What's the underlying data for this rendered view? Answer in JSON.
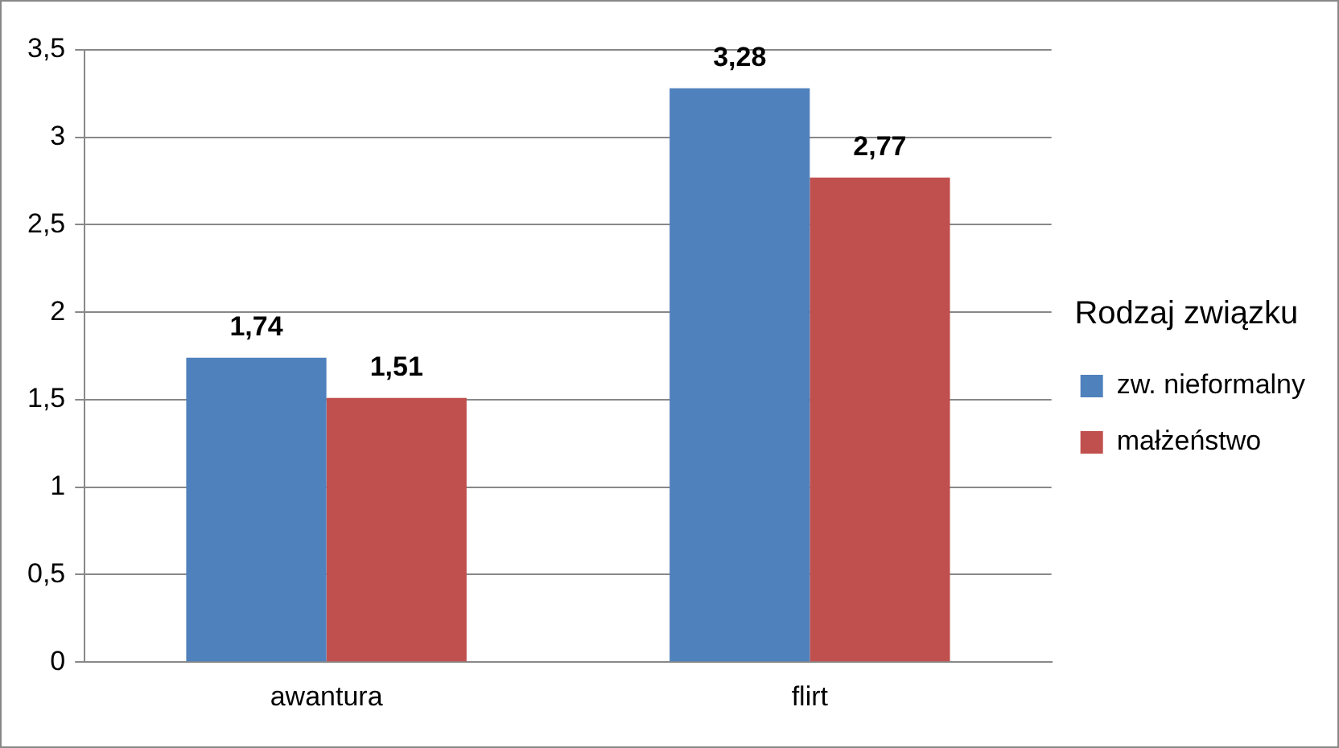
{
  "chart_data": {
    "type": "bar",
    "categories": [
      "awantura",
      "flirt"
    ],
    "series": [
      {
        "name": "zw. nieformalny",
        "color": "#4f81bd",
        "values": [
          1.74,
          3.28
        ],
        "value_labels": [
          "1,74",
          "3,28"
        ]
      },
      {
        "name": "małżeństwo",
        "color": "#c0504d",
        "values": [
          1.51,
          2.77
        ],
        "value_labels": [
          "1,51",
          "2,77"
        ]
      }
    ],
    "ylim": [
      0,
      3.5
    ],
    "yticks": [
      0,
      {
        "value": 0.5,
        "label": "0,5"
      },
      1,
      {
        "value": 1.5,
        "label": "1,5"
      },
      2,
      {
        "value": 2.5,
        "label": "2,5"
      },
      3,
      {
        "value": 3.5,
        "label": "3,5"
      }
    ],
    "grid": "y",
    "legend": "right",
    "legend_title": "Rodzaj związku"
  }
}
